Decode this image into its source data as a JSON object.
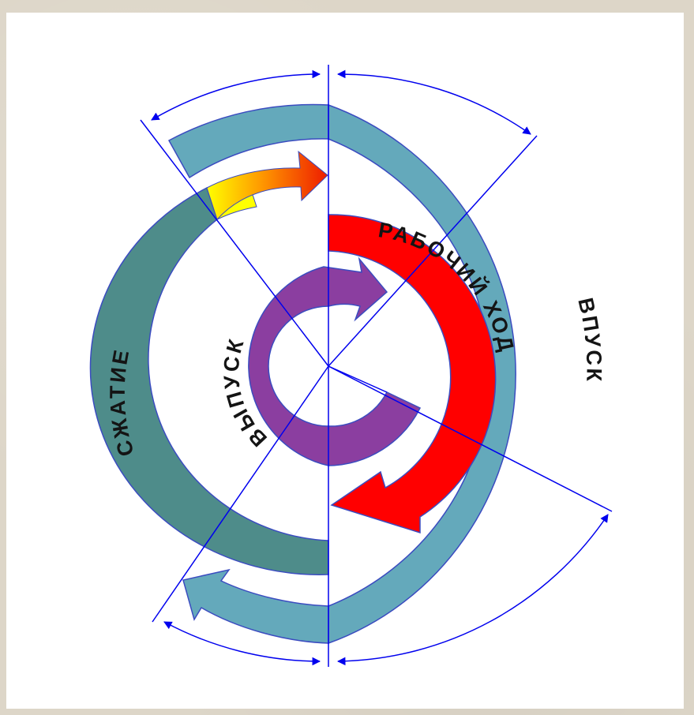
{
  "labels": {
    "intake": "ВПУСК",
    "compression": "СЖАТИЕ",
    "power": "РАБОЧИЙ ХОД",
    "exhaust": "ВЫПУСК"
  },
  "colors": {
    "intake_ring": "#64a9bb",
    "compression_ring": "#4e8c8a",
    "power_ring": "#ff0000",
    "exhaust_ring": "#8b3ea0",
    "ignition_arrow_start": "#ffff00",
    "ignition_arrow_end": "#ee1c00",
    "lines": "#0000ee",
    "outline": "#3b4cc0",
    "text": "#141414"
  }
}
